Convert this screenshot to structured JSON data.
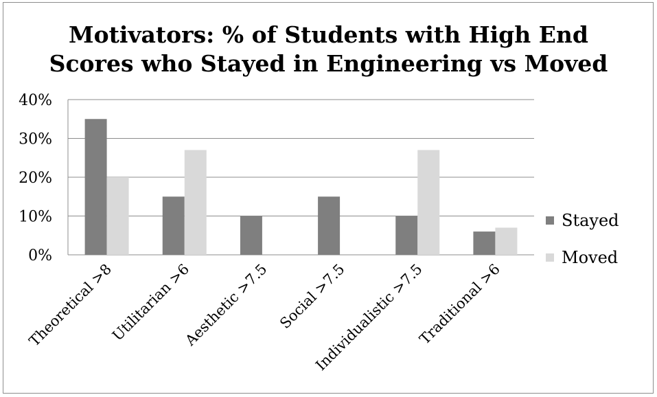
{
  "chart_data": {
    "type": "bar",
    "title_lines": [
      "Motivators: % of Students with High End",
      "Scores who Stayed in Engineering vs Moved"
    ],
    "categories": [
      "Theoretical >8",
      "Utilitarian >6",
      "Aesthetic >7.5",
      "Social >7.5",
      "Individualistic >7.5",
      "Traditional >6"
    ],
    "series": [
      {
        "name": "Stayed",
        "values": [
          35,
          15,
          10,
          15,
          10,
          6
        ],
        "color": "#7f7f7f"
      },
      {
        "name": "Moved",
        "values": [
          20,
          27,
          0,
          0,
          27,
          7
        ],
        "color": "#d9d9d9"
      }
    ],
    "y_ticks": [
      "0%",
      "10%",
      "20%",
      "30%",
      "40%"
    ],
    "ylim": [
      0,
      40
    ],
    "grid": true,
    "legend": "right"
  }
}
